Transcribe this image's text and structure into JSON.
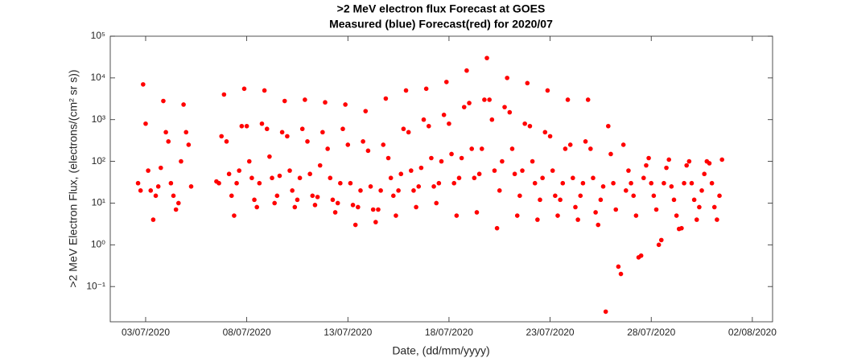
{
  "chart_data": {
    "type": "scatter",
    "title": ">2 MeV electron flux Forecast at GOES",
    "subtitle": "Measured (blue) Forecast(red) for 2020/07",
    "x_label": "Date, (dd/mm/yyyy)",
    "y_label": ">2 MeV Electron Flux, (electrons/(cm² sr s))",
    "log_y": true,
    "color": "#ff0000",
    "xlim": [
      "2020-07-01T06:00",
      "2020-08-03T00:00"
    ],
    "xticks": [
      {
        "value": "2020-07-03T00:00",
        "label": "03/07/2020"
      },
      {
        "value": "2020-07-08T00:00",
        "label": "08/07/2020"
      },
      {
        "value": "2020-07-13T00:00",
        "label": "13/07/2020"
      },
      {
        "value": "2020-07-18T00:00",
        "label": "18/07/2020"
      },
      {
        "value": "2020-07-23T00:00",
        "label": "23/07/2020"
      },
      {
        "value": "2020-07-28T00:00",
        "label": "28/07/2020"
      },
      {
        "value": "2020-08-02T00:00",
        "label": "02/08/2020"
      }
    ],
    "ylim": [
      0.0143,
      100000
    ],
    "yticks": [
      {
        "value": 0.1,
        "label": "10⁻¹"
      },
      {
        "value": 1,
        "label": "10⁰"
      },
      {
        "value": 10,
        "label": "10¹"
      },
      {
        "value": 100,
        "label": "10²"
      },
      {
        "value": 1000,
        "label": "10³"
      },
      {
        "value": 10000,
        "label": "10⁴"
      },
      {
        "value": 100000,
        "label": "10⁵"
      }
    ],
    "x": [
      "2020-07-02T15:00",
      "2020-07-02T18:00",
      "2020-07-02T21:00",
      "2020-07-03T00:00",
      "2020-07-03T03:00",
      "2020-07-03T06:00",
      "2020-07-03T09:00",
      "2020-07-03T12:00",
      "2020-07-03T15:00",
      "2020-07-03T18:00",
      "2020-07-03T21:00",
      "2020-07-04T00:00",
      "2020-07-04T03:00",
      "2020-07-04T06:00",
      "2020-07-04T09:00",
      "2020-07-04T12:00",
      "2020-07-04T15:00",
      "2020-07-04T18:00",
      "2020-07-04T21:00",
      "2020-07-05T00:00",
      "2020-07-05T03:00",
      "2020-07-05T06:00",
      "2020-07-06T12:00",
      "2020-07-06T15:00",
      "2020-07-06T18:00",
      "2020-07-06T21:00",
      "2020-07-07T00:00",
      "2020-07-07T03:00",
      "2020-07-07T06:00",
      "2020-07-07T09:00",
      "2020-07-07T12:00",
      "2020-07-07T15:00",
      "2020-07-07T18:00",
      "2020-07-07T21:00",
      "2020-07-08T00:00",
      "2020-07-08T03:00",
      "2020-07-08T06:00",
      "2020-07-08T09:00",
      "2020-07-08T12:00",
      "2020-07-08T15:00",
      "2020-07-08T18:00",
      "2020-07-08T21:00",
      "2020-07-09T00:00",
      "2020-07-09T03:00",
      "2020-07-09T06:00",
      "2020-07-09T09:00",
      "2020-07-09T12:00",
      "2020-07-09T15:00",
      "2020-07-09T18:00",
      "2020-07-09T21:00",
      "2020-07-10T00:00",
      "2020-07-10T03:00",
      "2020-07-10T06:00",
      "2020-07-10T09:00",
      "2020-07-10T12:00",
      "2020-07-10T15:00",
      "2020-07-10T18:00",
      "2020-07-10T21:00",
      "2020-07-11T00:00",
      "2020-07-11T03:00",
      "2020-07-11T06:00",
      "2020-07-11T09:00",
      "2020-07-11T12:00",
      "2020-07-11T15:00",
      "2020-07-11T18:00",
      "2020-07-11T21:00",
      "2020-07-12T00:00",
      "2020-07-12T03:00",
      "2020-07-12T06:00",
      "2020-07-12T09:00",
      "2020-07-12T12:00",
      "2020-07-12T15:00",
      "2020-07-12T18:00",
      "2020-07-12T21:00",
      "2020-07-13T00:00",
      "2020-07-13T03:00",
      "2020-07-13T06:00",
      "2020-07-13T09:00",
      "2020-07-13T12:00",
      "2020-07-13T15:00",
      "2020-07-13T18:00",
      "2020-07-13T21:00",
      "2020-07-14T00:00",
      "2020-07-14T03:00",
      "2020-07-14T06:00",
      "2020-07-14T09:00",
      "2020-07-14T12:00",
      "2020-07-14T15:00",
      "2020-07-14T18:00",
      "2020-07-14T21:00",
      "2020-07-15T00:00",
      "2020-07-15T03:00",
      "2020-07-15T06:00",
      "2020-07-15T09:00",
      "2020-07-15T12:00",
      "2020-07-15T15:00",
      "2020-07-15T18:00",
      "2020-07-15T21:00",
      "2020-07-16T00:00",
      "2020-07-16T03:00",
      "2020-07-16T06:00",
      "2020-07-16T09:00",
      "2020-07-16T12:00",
      "2020-07-16T15:00",
      "2020-07-16T18:00",
      "2020-07-16T21:00",
      "2020-07-17T00:00",
      "2020-07-17T03:00",
      "2020-07-17T06:00",
      "2020-07-17T09:00",
      "2020-07-17T12:00",
      "2020-07-17T15:00",
      "2020-07-17T18:00",
      "2020-07-17T21:00",
      "2020-07-18T00:00",
      "2020-07-18T03:00",
      "2020-07-18T06:00",
      "2020-07-18T09:00",
      "2020-07-18T12:00",
      "2020-07-18T15:00",
      "2020-07-18T18:00",
      "2020-07-18T21:00",
      "2020-07-19T00:00",
      "2020-07-19T03:00",
      "2020-07-19T06:00",
      "2020-07-19T09:00",
      "2020-07-19T12:00",
      "2020-07-19T15:00",
      "2020-07-19T18:00",
      "2020-07-19T21:00",
      "2020-07-20T00:00",
      "2020-07-20T03:00",
      "2020-07-20T06:00",
      "2020-07-20T09:00",
      "2020-07-20T12:00",
      "2020-07-20T15:00",
      "2020-07-20T18:00",
      "2020-07-20T21:00",
      "2020-07-21T00:00",
      "2020-07-21T03:00",
      "2020-07-21T06:00",
      "2020-07-21T09:00",
      "2020-07-21T12:00",
      "2020-07-21T15:00",
      "2020-07-21T18:00",
      "2020-07-21T21:00",
      "2020-07-22T00:00",
      "2020-07-22T03:00",
      "2020-07-22T06:00",
      "2020-07-22T09:00",
      "2020-07-22T12:00",
      "2020-07-22T15:00",
      "2020-07-22T18:00",
      "2020-07-22T21:00",
      "2020-07-23T00:00",
      "2020-07-23T03:00",
      "2020-07-23T06:00",
      "2020-07-23T09:00",
      "2020-07-23T12:00",
      "2020-07-23T15:00",
      "2020-07-23T18:00",
      "2020-07-23T21:00",
      "2020-07-24T00:00",
      "2020-07-24T03:00",
      "2020-07-24T06:00",
      "2020-07-24T09:00",
      "2020-07-24T12:00",
      "2020-07-24T15:00",
      "2020-07-24T18:00",
      "2020-07-24T21:00",
      "2020-07-25T00:00",
      "2020-07-25T03:00",
      "2020-07-25T06:00",
      "2020-07-25T09:00",
      "2020-07-25T12:00",
      "2020-07-25T15:00",
      "2020-07-25T18:00",
      "2020-07-25T21:00",
      "2020-07-26T00:00",
      "2020-07-26T03:00",
      "2020-07-26T06:00",
      "2020-07-26T09:00",
      "2020-07-26T12:00",
      "2020-07-26T15:00",
      "2020-07-26T18:00",
      "2020-07-26T21:00",
      "2020-07-27T00:00",
      "2020-07-27T03:00",
      "2020-07-27T06:00",
      "2020-07-27T09:00",
      "2020-07-27T12:00",
      "2020-07-27T15:00",
      "2020-07-27T18:00",
      "2020-07-27T21:00",
      "2020-07-28T00:00",
      "2020-07-28T03:00",
      "2020-07-28T06:00",
      "2020-07-28T09:00",
      "2020-07-28T12:00",
      "2020-07-28T15:00",
      "2020-07-28T18:00",
      "2020-07-28T21:00",
      "2020-07-29T00:00",
      "2020-07-29T03:00",
      "2020-07-29T06:00",
      "2020-07-29T09:00",
      "2020-07-29T12:00",
      "2020-07-29T15:00",
      "2020-07-29T18:00",
      "2020-07-29T21:00",
      "2020-07-30T00:00",
      "2020-07-30T03:00",
      "2020-07-30T06:00",
      "2020-07-30T09:00",
      "2020-07-30T12:00",
      "2020-07-30T15:00",
      "2020-07-30T18:00",
      "2020-07-30T21:00",
      "2020-07-31T00:00",
      "2020-07-31T03:00",
      "2020-07-31T06:00",
      "2020-07-31T09:00",
      "2020-07-31T12:00"
    ],
    "values": [
      30,
      20,
      7000,
      800,
      60,
      20,
      4,
      15,
      25,
      70,
      2800,
      500,
      300,
      30,
      15,
      7,
      10,
      100,
      2300,
      500,
      250,
      25,
      33,
      30,
      400,
      4000,
      300,
      50,
      15,
      5,
      30,
      60,
      700,
      5500,
      700,
      100,
      40,
      12,
      8,
      30,
      800,
      5000,
      600,
      130,
      40,
      10,
      15,
      45,
      500,
      2800,
      400,
      60,
      20,
      8,
      12,
      40,
      600,
      3000,
      300,
      50,
      15,
      9,
      14,
      80,
      500,
      2600,
      200,
      40,
      12,
      6,
      10,
      30,
      600,
      2300,
      250,
      30,
      9,
      3,
      8,
      20,
      300,
      1600,
      180,
      25,
      7,
      3.5,
      7,
      20,
      250,
      3200,
      120,
      40,
      15,
      5,
      20,
      50,
      600,
      5000,
      500,
      60,
      20,
      8,
      25,
      70,
      1000,
      5500,
      700,
      120,
      25,
      10,
      30,
      100,
      1300,
      8000,
      800,
      150,
      30,
      5,
      40,
      120,
      2000,
      15000,
      2500,
      200,
      40,
      6,
      50,
      200,
      3000,
      30000,
      3000,
      1000,
      60,
      2.5,
      20,
      100,
      2000,
      10000,
      1500,
      200,
      50,
      5,
      15,
      60,
      800,
      7500,
      700,
      100,
      30,
      4,
      12,
      40,
      500,
      5000,
      400,
      60,
      15,
      5,
      12,
      30,
      200,
      3000,
      250,
      40,
      8,
      4,
      15,
      30,
      300,
      3000,
      200,
      40,
      6,
      3,
      12,
      25,
      0.025,
      700,
      150,
      30,
      7,
      0.3,
      0.2,
      250,
      20,
      60,
      30,
      15,
      5,
      0.5,
      0.55,
      40,
      80,
      120,
      30,
      15,
      7,
      1.0,
      1.3,
      30,
      70,
      110,
      25,
      12,
      5,
      2.4,
      2.5,
      30,
      80,
      100,
      30,
      12,
      4,
      8,
      20,
      50,
      100,
      90,
      30,
      8,
      4,
      15,
      110
    ]
  }
}
